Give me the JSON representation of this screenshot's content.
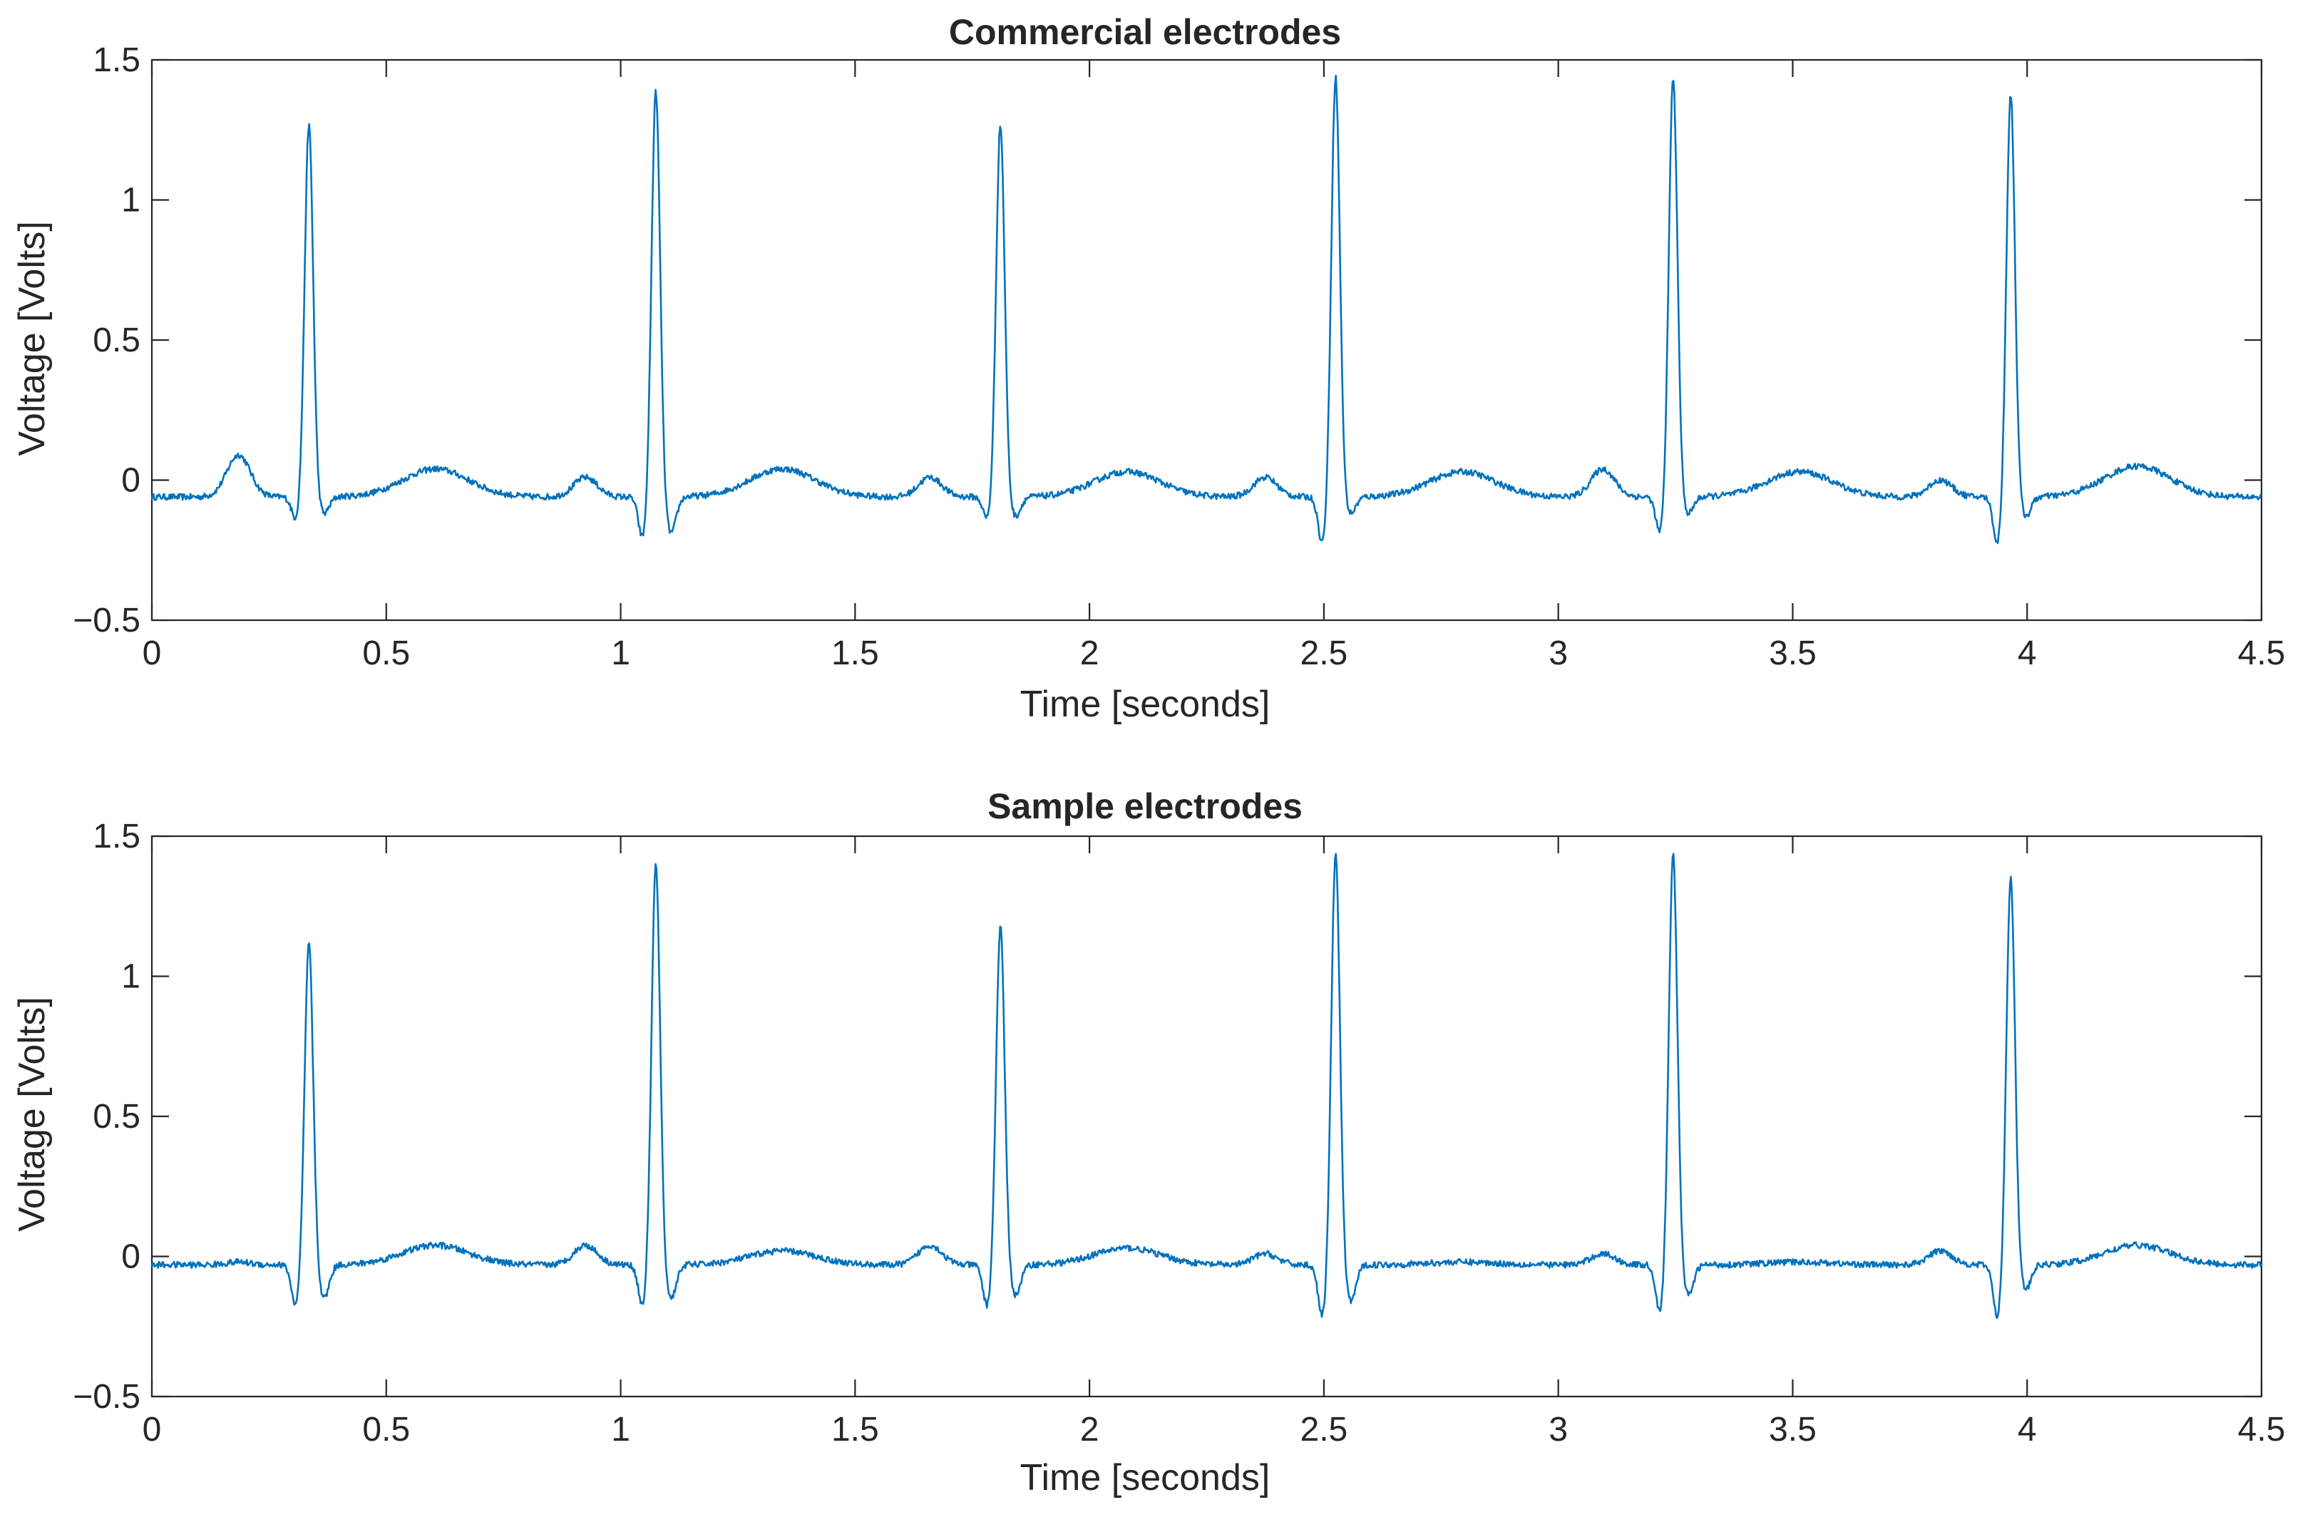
{
  "figure": {
    "line_color": "#0072BD",
    "axes_color": "#262626",
    "background": "#ffffff"
  },
  "chart_data": [
    {
      "type": "line",
      "title": "Commercial electrodes",
      "xlabel": "Time [seconds]",
      "ylabel": "Voltage [Volts]",
      "xlim": [
        0,
        4.5
      ],
      "ylim": [
        -0.5,
        1.5
      ],
      "x_ticks": [
        "0",
        "0.5",
        "1",
        "1.5",
        "2",
        "2.5",
        "3",
        "3.5",
        "4",
        "4.5"
      ],
      "y_ticks": [
        "−0.5",
        "0",
        "0.5",
        "1",
        "1.5"
      ],
      "grid": false,
      "series": [
        {
          "color": "#0072BD",
          "beats": [
            {
              "r_time": 0.335,
              "r_peak": 1.27,
              "q_min": -0.14,
              "s_min": -0.12,
              "p_amp": 0.15,
              "t_amp": 0.1
            },
            {
              "r_time": 1.075,
              "r_peak": 1.39,
              "q_min": -0.21,
              "s_min": -0.19,
              "p_amp": 0.07,
              "t_amp": 0.1
            },
            {
              "r_time": 1.81,
              "r_peak": 1.27,
              "q_min": -0.14,
              "s_min": -0.13,
              "p_amp": 0.07,
              "t_amp": 0.09
            },
            {
              "r_time": 2.525,
              "r_peak": 1.44,
              "q_min": -0.23,
              "s_min": -0.12,
              "p_amp": 0.07,
              "t_amp": 0.09
            },
            {
              "r_time": 3.245,
              "r_peak": 1.44,
              "q_min": -0.19,
              "s_min": -0.12,
              "p_amp": 0.1,
              "t_amp": 0.09
            },
            {
              "r_time": 3.965,
              "r_peak": 1.38,
              "q_min": -0.23,
              "s_min": -0.13,
              "p_amp": 0.06,
              "t_amp": 0.11
            }
          ],
          "baseline": -0.06
        }
      ]
    },
    {
      "type": "line",
      "title": "Sample electrodes",
      "xlabel": "Time [seconds]",
      "ylabel": "Voltage [Volts]",
      "xlim": [
        0,
        4.5
      ],
      "ylim": [
        -0.5,
        1.5
      ],
      "x_ticks": [
        "0",
        "0.5",
        "1",
        "1.5",
        "2",
        "2.5",
        "3",
        "3.5",
        "4",
        "4.5"
      ],
      "y_ticks": [
        "−0.5",
        "0",
        "0.5",
        "1",
        "1.5"
      ],
      "grid": false,
      "series": [
        {
          "color": "#0072BD",
          "beats": [
            {
              "r_time": 0.335,
              "r_peak": 1.12,
              "q_min": -0.18,
              "s_min": -0.15,
              "p_amp": 0.01,
              "t_amp": 0.07
            },
            {
              "r_time": 1.075,
              "r_peak": 1.4,
              "q_min": -0.18,
              "s_min": -0.15,
              "p_amp": 0.07,
              "t_amp": 0.05
            },
            {
              "r_time": 1.81,
              "r_peak": 1.18,
              "q_min": -0.18,
              "s_min": -0.14,
              "p_amp": 0.07,
              "t_amp": 0.06
            },
            {
              "r_time": 2.525,
              "r_peak": 1.44,
              "q_min": -0.22,
              "s_min": -0.16,
              "p_amp": 0.04,
              "t_amp": 0.01
            },
            {
              "r_time": 3.245,
              "r_peak": 1.44,
              "q_min": -0.2,
              "s_min": -0.14,
              "p_amp": 0.04,
              "t_amp": 0.01
            },
            {
              "r_time": 3.965,
              "r_peak": 1.36,
              "q_min": -0.22,
              "s_min": -0.12,
              "p_amp": 0.05,
              "t_amp": 0.07
            }
          ],
          "baseline": -0.03
        }
      ]
    }
  ]
}
